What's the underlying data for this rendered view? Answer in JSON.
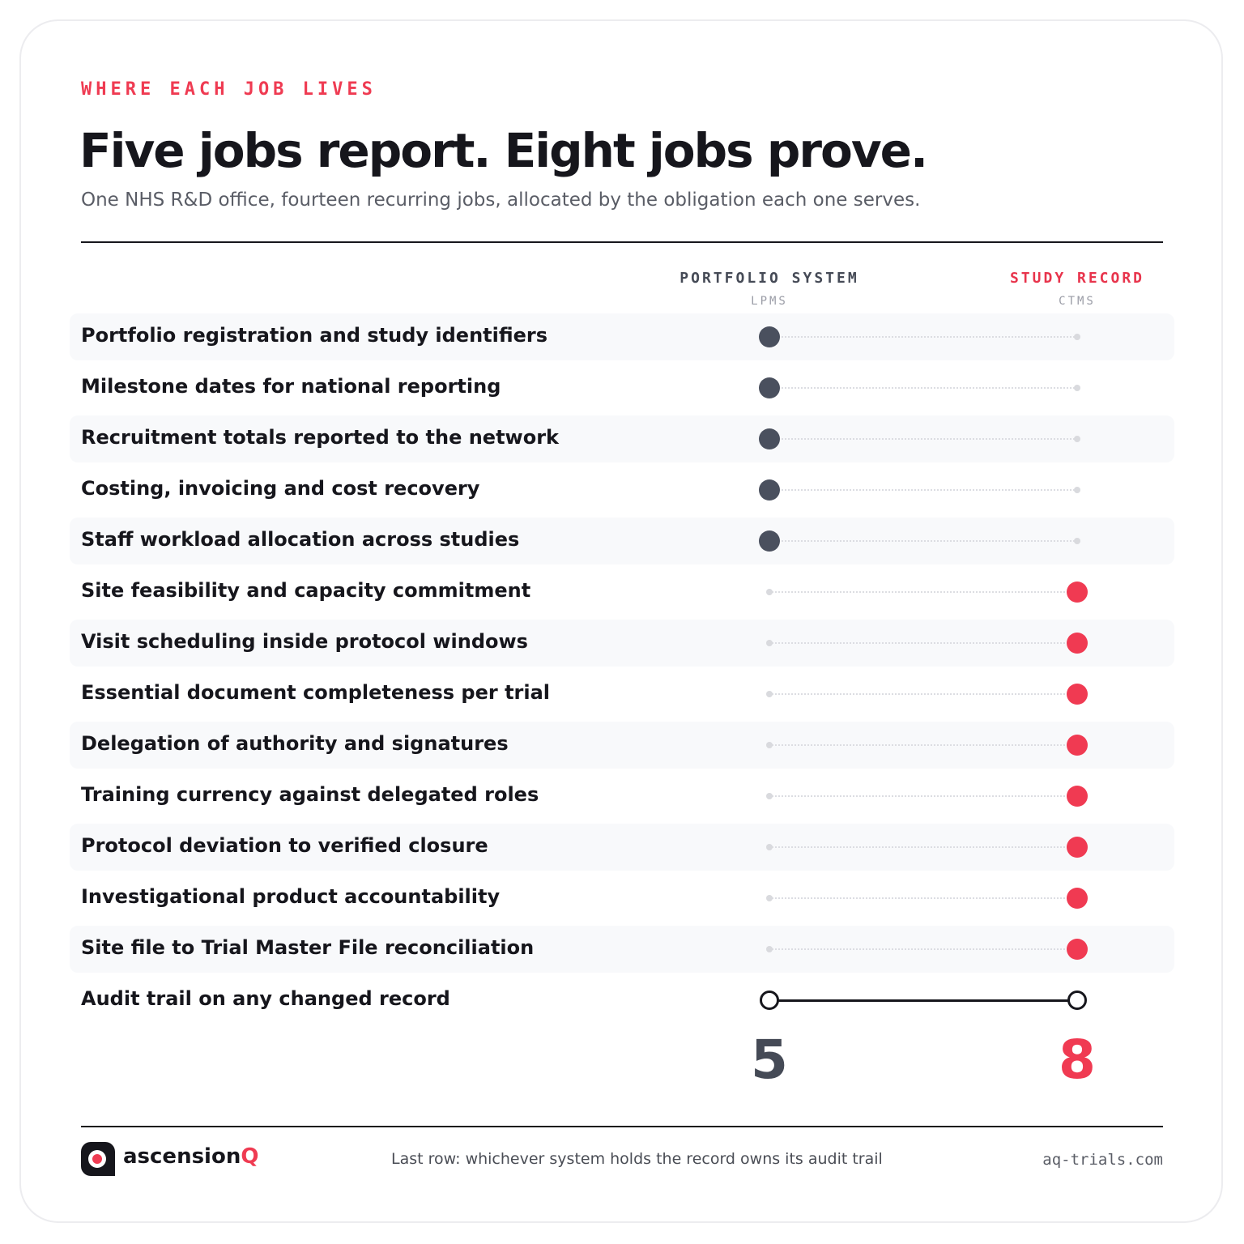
{
  "eyebrow": "WHERE EACH JOB LIVES",
  "title": "Five jobs report. Eight jobs prove.",
  "subtitle": "One NHS R&D office, fourteen recurring jobs, allocated by the obligation each one serves.",
  "columns": {
    "left": {
      "name": "PORTFOLIO SYSTEM",
      "sub": "LPMS"
    },
    "right": {
      "name": "STUDY RECORD",
      "sub": "CTMS"
    }
  },
  "rows": [
    {
      "label": "Portfolio registration and study identifiers",
      "owner": "lpms"
    },
    {
      "label": "Milestone dates for national reporting",
      "owner": "lpms"
    },
    {
      "label": "Recruitment totals reported to the network",
      "owner": "lpms"
    },
    {
      "label": "Costing, invoicing and cost recovery",
      "owner": "lpms"
    },
    {
      "label": "Staff workload allocation across studies",
      "owner": "lpms"
    },
    {
      "label": "Site feasibility and capacity commitment",
      "owner": "ctms"
    },
    {
      "label": "Visit scheduling inside protocol windows",
      "owner": "ctms"
    },
    {
      "label": "Essential document completeness per trial",
      "owner": "ctms"
    },
    {
      "label": "Delegation of authority and signatures",
      "owner": "ctms"
    },
    {
      "label": "Training currency against delegated roles",
      "owner": "ctms"
    },
    {
      "label": "Protocol deviation to verified closure",
      "owner": "ctms"
    },
    {
      "label": "Investigational product accountability",
      "owner": "ctms"
    },
    {
      "label": "Site file to Trial Master File reconciliation",
      "owner": "ctms"
    },
    {
      "label": "Audit trail on any changed record",
      "owner": "both"
    }
  ],
  "totals": {
    "lpms": "5",
    "ctms": "8"
  },
  "colors": {
    "lpms": "#4a505e",
    "ctms": "#f03a52",
    "accent": "#ef3b52"
  },
  "footer": {
    "brand_main": "ascension",
    "brand_accent": "Q",
    "note": "Last row: whichever system holds the record owns its audit trail",
    "site": "aq-trials.com",
    "logo_icon": "ascensionq-logo-icon"
  }
}
